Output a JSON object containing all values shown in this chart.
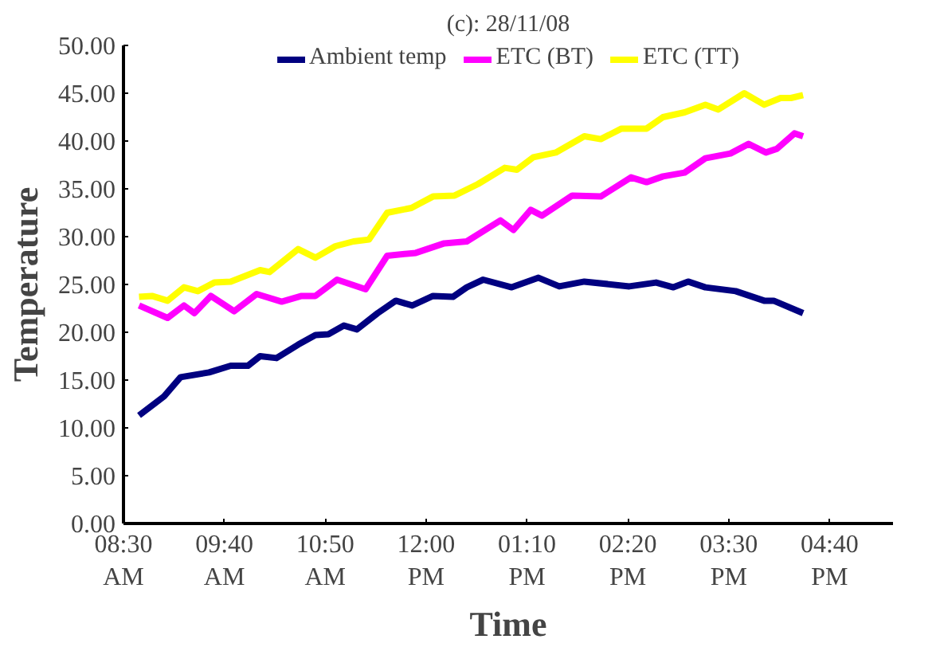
{
  "chart_data": {
    "type": "line",
    "title": "(c): 28/11/08",
    "xlabel": "Time",
    "ylabel": "Temperature",
    "xlim": [
      8.5,
      17.4
    ],
    "ylim": [
      0,
      50
    ],
    "xticks": [
      {
        "value": 8.5,
        "label": "08:30\nAM"
      },
      {
        "value": 9.6667,
        "label": "09:40\nAM"
      },
      {
        "value": 10.8333,
        "label": "10:50\nAM"
      },
      {
        "value": 12,
        "label": "12:00\nPM"
      },
      {
        "value": 13.1667,
        "label": "01:10\nPM"
      },
      {
        "value": 14.3333,
        "label": "02:20\nPM"
      },
      {
        "value": 15.5,
        "label": "03:30\nPM"
      },
      {
        "value": 16.6667,
        "label": "04:40\nPM"
      }
    ],
    "yticks": [
      {
        "value": 0,
        "label": "0.00"
      },
      {
        "value": 5,
        "label": "5.00"
      },
      {
        "value": 10,
        "label": "10.00"
      },
      {
        "value": 15,
        "label": "15.00"
      },
      {
        "value": 20,
        "label": "20.00"
      },
      {
        "value": 25,
        "label": "25.00"
      },
      {
        "value": 30,
        "label": "30.00"
      },
      {
        "value": 35,
        "label": "35.00"
      },
      {
        "value": 40,
        "label": "40.00"
      },
      {
        "value": 45,
        "label": "45.00"
      },
      {
        "value": 50,
        "label": "50.00"
      }
    ],
    "grid": false,
    "legend": "top",
    "marker": "none",
    "line_style": "solid",
    "series": [
      {
        "name": "Ambient temp",
        "color": "#000080",
        "x": [
          8.68,
          8.97,
          9.16,
          9.49,
          9.74,
          9.94,
          10.08,
          10.27,
          10.52,
          10.72,
          10.87,
          11.05,
          11.2,
          11.44,
          11.65,
          11.84,
          12.08,
          12.31,
          12.47,
          12.66,
          12.99,
          13.3,
          13.54,
          13.83,
          14.35,
          14.66,
          14.86,
          15.03,
          15.23,
          15.58,
          15.91,
          16.02,
          16.36
        ],
        "values": [
          11.3,
          13.3,
          15.3,
          15.8,
          16.5,
          16.5,
          17.5,
          17.3,
          18.7,
          19.7,
          19.8,
          20.7,
          20.3,
          22,
          23.3,
          22.8,
          23.8,
          23.7,
          24.7,
          25.5,
          24.7,
          25.7,
          24.8,
          25.3,
          24.8,
          25.2,
          24.7,
          25.3,
          24.7,
          24.3,
          23.3,
          23.3,
          22
        ]
      },
      {
        "name": "ETC (BT)",
        "color": "#ff00ff",
        "x": [
          8.68,
          9.01,
          9.2,
          9.32,
          9.51,
          9.78,
          10.04,
          10.33,
          10.56,
          10.72,
          10.97,
          11.3,
          11.55,
          11.88,
          12.21,
          12.47,
          12.86,
          13.01,
          13.21,
          13.34,
          13.69,
          14.02,
          14.37,
          14.55,
          14.74,
          14.99,
          15.23,
          15.52,
          15.73,
          15.93,
          16.06,
          16.26,
          16.36
        ],
        "values": [
          22.8,
          21.5,
          22.8,
          22,
          23.8,
          22.2,
          24,
          23.2,
          23.8,
          23.8,
          25.5,
          24.5,
          28,
          28.3,
          29.3,
          29.5,
          31.7,
          30.7,
          32.8,
          32.2,
          34.3,
          34.2,
          36.2,
          35.7,
          36.3,
          36.7,
          38.2,
          38.7,
          39.7,
          38.8,
          39.2,
          40.8,
          40.5
        ]
      },
      {
        "name": "ETC (TT)",
        "color": "#ffff00",
        "x": [
          8.68,
          8.83,
          9.01,
          9.2,
          9.36,
          9.55,
          9.74,
          10.08,
          10.19,
          10.52,
          10.72,
          10.95,
          11.16,
          11.34,
          11.55,
          11.83,
          12.08,
          12.33,
          12.6,
          12.91,
          13.05,
          13.24,
          13.5,
          13.83,
          14.02,
          14.26,
          14.55,
          14.74,
          14.99,
          15.23,
          15.38,
          15.68,
          15.91,
          16.1,
          16.22,
          16.36
        ],
        "values": [
          23.7,
          23.8,
          23.3,
          24.7,
          24.3,
          25.2,
          25.3,
          26.5,
          26.3,
          28.7,
          27.8,
          29,
          29.5,
          29.7,
          32.5,
          33,
          34.2,
          34.3,
          35.5,
          37.2,
          37,
          38.3,
          38.8,
          40.5,
          40.2,
          41.3,
          41.3,
          42.5,
          43,
          43.8,
          43.3,
          45,
          43.8,
          44.5,
          44.5,
          44.8
        ]
      }
    ]
  }
}
